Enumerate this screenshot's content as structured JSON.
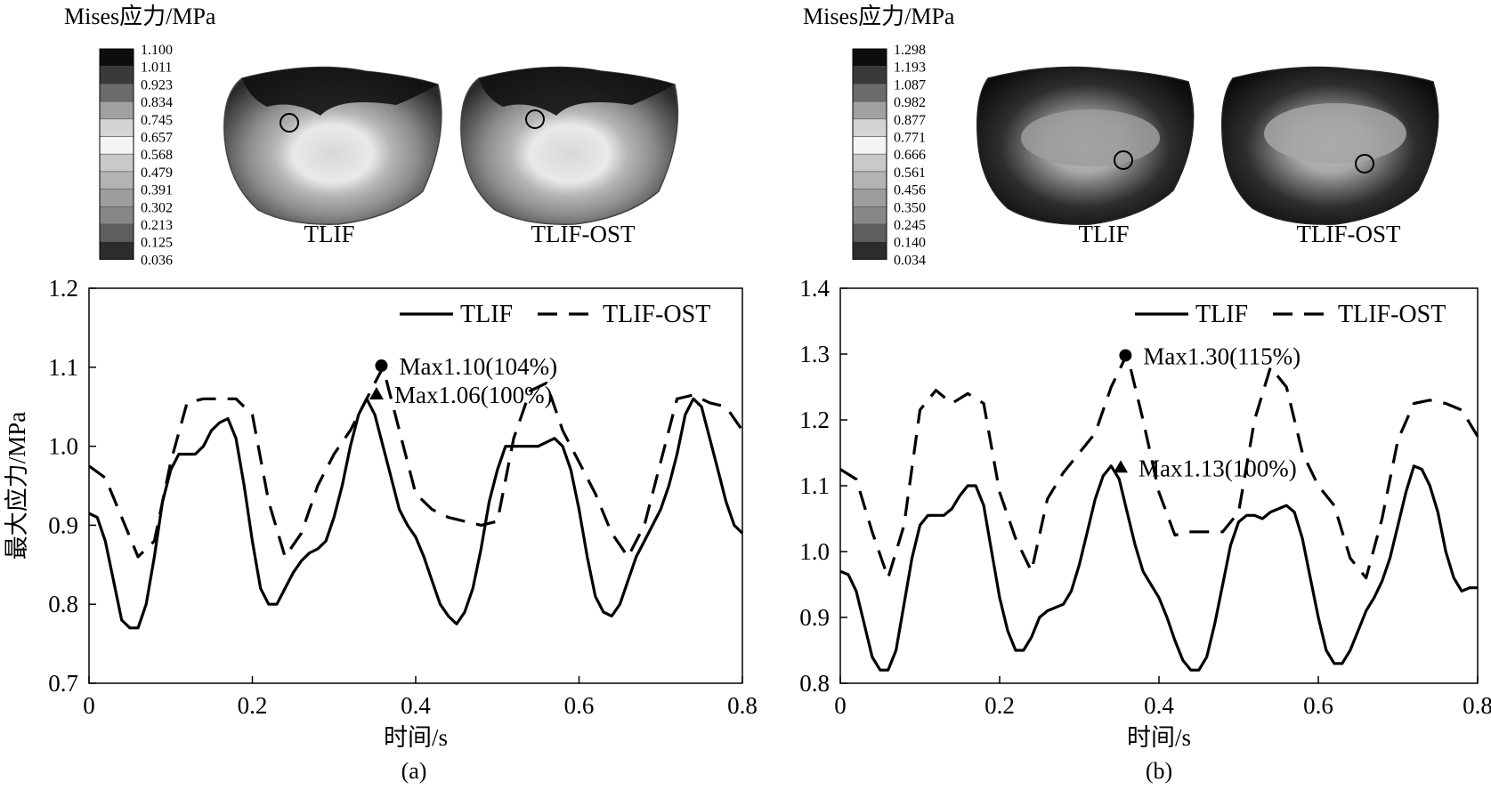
{
  "chart_data": [
    {
      "type": "line",
      "panel_label": "(a)",
      "colorbar": {
        "title": "Mises应力/MPa",
        "ticks": [
          "1.100",
          "1.011",
          "0.923",
          "0.834",
          "0.745",
          "0.657",
          "0.568",
          "0.479",
          "0.391",
          "0.302",
          "0.213",
          "0.125",
          "0.036"
        ]
      },
      "model_labels": [
        "TLIF",
        "TLIF-OST"
      ],
      "xlabel": "时间/s",
      "ylabel": "最大应力/MPa",
      "xlim": [
        0,
        0.8
      ],
      "ylim": [
        0.7,
        1.2
      ],
      "xticks": [
        "0",
        "0.2",
        "0.4",
        "0.6",
        "0.8"
      ],
      "yticks": [
        "0.7",
        "0.8",
        "0.9",
        "1.0",
        "1.1",
        "1.2"
      ],
      "legend_position": "top-right",
      "series": [
        {
          "name": "TLIF",
          "style": "solid",
          "x": [
            0,
            0.01,
            0.02,
            0.03,
            0.04,
            0.05,
            0.06,
            0.07,
            0.08,
            0.09,
            0.1,
            0.11,
            0.12,
            0.13,
            0.14,
            0.15,
            0.16,
            0.17,
            0.18,
            0.19,
            0.2,
            0.21,
            0.22,
            0.23,
            0.24,
            0.25,
            0.26,
            0.27,
            0.28,
            0.29,
            0.3,
            0.31,
            0.32,
            0.33,
            0.34,
            0.35,
            0.36,
            0.37,
            0.38,
            0.39,
            0.4,
            0.41,
            0.42,
            0.43,
            0.44,
            0.45,
            0.46,
            0.47,
            0.48,
            0.49,
            0.5,
            0.51,
            0.52,
            0.53,
            0.54,
            0.55,
            0.56,
            0.57,
            0.58,
            0.59,
            0.6,
            0.61,
            0.62,
            0.63,
            0.64,
            0.65,
            0.66,
            0.67,
            0.68,
            0.69,
            0.7,
            0.71,
            0.72,
            0.73,
            0.74,
            0.75,
            0.76,
            0.77,
            0.78,
            0.79,
            0.8
          ],
          "values": [
            0.915,
            0.91,
            0.88,
            0.83,
            0.78,
            0.77,
            0.77,
            0.8,
            0.86,
            0.93,
            0.97,
            0.99,
            0.99,
            0.99,
            1.0,
            1.02,
            1.03,
            1.035,
            1.01,
            0.95,
            0.88,
            0.82,
            0.8,
            0.8,
            0.82,
            0.84,
            0.855,
            0.865,
            0.87,
            0.88,
            0.91,
            0.95,
            1.0,
            1.04,
            1.06,
            1.04,
            1.0,
            0.96,
            0.92,
            0.9,
            0.885,
            0.86,
            0.83,
            0.8,
            0.785,
            0.775,
            0.79,
            0.82,
            0.87,
            0.93,
            0.97,
            1.0,
            1.0,
            1.0,
            1.0,
            1.0,
            1.005,
            1.01,
            1.0,
            0.97,
            0.92,
            0.86,
            0.81,
            0.79,
            0.785,
            0.8,
            0.83,
            0.86,
            0.88,
            0.9,
            0.92,
            0.95,
            0.99,
            1.04,
            1.06,
            1.05,
            1.01,
            0.97,
            0.93,
            0.9,
            0.89
          ]
        },
        {
          "name": "TLIF-OST",
          "style": "dashed",
          "x": [
            0,
            0.02,
            0.04,
            0.06,
            0.08,
            0.1,
            0.12,
            0.14,
            0.16,
            0.18,
            0.2,
            0.22,
            0.24,
            0.26,
            0.28,
            0.3,
            0.32,
            0.34,
            0.36,
            0.38,
            0.4,
            0.42,
            0.44,
            0.46,
            0.48,
            0.5,
            0.52,
            0.54,
            0.56,
            0.58,
            0.6,
            0.62,
            0.64,
            0.66,
            0.68,
            0.7,
            0.72,
            0.74,
            0.76,
            0.78,
            0.8
          ],
          "values": [
            0.975,
            0.96,
            0.91,
            0.86,
            0.88,
            0.98,
            1.055,
            1.06,
            1.06,
            1.06,
            1.04,
            0.93,
            0.86,
            0.89,
            0.95,
            0.99,
            1.02,
            1.06,
            1.1,
            1.02,
            0.94,
            0.92,
            0.91,
            0.905,
            0.9,
            0.905,
            1.01,
            1.07,
            1.08,
            1.02,
            0.98,
            0.94,
            0.89,
            0.86,
            0.9,
            0.98,
            1.06,
            1.065,
            1.055,
            1.05,
            1.02
          ]
        }
      ],
      "annotations": [
        {
          "marker": "circle",
          "x": 0.358,
          "y": 1.102,
          "label": "Max1.10(104%)"
        },
        {
          "marker": "triangle",
          "x": 0.352,
          "y": 1.066,
          "label": "Max1.06(100%)"
        }
      ]
    },
    {
      "type": "line",
      "panel_label": "(b)",
      "colorbar": {
        "title": "Mises应力/MPa",
        "ticks": [
          "1.298",
          "1.193",
          "1.087",
          "0.982",
          "0.877",
          "0.771",
          "0.666",
          "0.561",
          "0.456",
          "0.350",
          "0.245",
          "0.140",
          "0.034"
        ]
      },
      "model_labels": [
        "TLIF",
        "TLIF-OST"
      ],
      "xlabel": "时间/s",
      "ylabel": "",
      "xlim": [
        0,
        0.8
      ],
      "ylim": [
        0.8,
        1.4
      ],
      "xticks": [
        "0",
        "0.2",
        "0.4",
        "0.6",
        "0.8"
      ],
      "yticks": [
        "0.8",
        "0.9",
        "1.0",
        "1.1",
        "1.2",
        "1.3",
        "1.4"
      ],
      "legend_position": "top-right",
      "series": [
        {
          "name": "TLIF",
          "style": "solid",
          "x": [
            0,
            0.01,
            0.02,
            0.03,
            0.04,
            0.05,
            0.06,
            0.07,
            0.08,
            0.09,
            0.1,
            0.11,
            0.12,
            0.13,
            0.14,
            0.15,
            0.16,
            0.17,
            0.18,
            0.19,
            0.2,
            0.21,
            0.22,
            0.23,
            0.24,
            0.25,
            0.26,
            0.27,
            0.28,
            0.29,
            0.3,
            0.31,
            0.32,
            0.33,
            0.34,
            0.35,
            0.36,
            0.37,
            0.38,
            0.39,
            0.4,
            0.41,
            0.42,
            0.43,
            0.44,
            0.45,
            0.46,
            0.47,
            0.48,
            0.49,
            0.5,
            0.51,
            0.52,
            0.53,
            0.54,
            0.55,
            0.56,
            0.57,
            0.58,
            0.59,
            0.6,
            0.61,
            0.62,
            0.63,
            0.64,
            0.65,
            0.66,
            0.67,
            0.68,
            0.69,
            0.7,
            0.71,
            0.72,
            0.73,
            0.74,
            0.75,
            0.76,
            0.77,
            0.78,
            0.79,
            0.8
          ],
          "values": [
            0.97,
            0.965,
            0.94,
            0.89,
            0.84,
            0.82,
            0.82,
            0.85,
            0.92,
            0.99,
            1.04,
            1.055,
            1.055,
            1.055,
            1.065,
            1.085,
            1.1,
            1.1,
            1.07,
            1.0,
            0.93,
            0.88,
            0.85,
            0.85,
            0.87,
            0.9,
            0.91,
            0.915,
            0.92,
            0.94,
            0.98,
            1.03,
            1.08,
            1.115,
            1.13,
            1.11,
            1.06,
            1.01,
            0.97,
            0.95,
            0.93,
            0.9,
            0.865,
            0.835,
            0.82,
            0.82,
            0.84,
            0.89,
            0.95,
            1.01,
            1.045,
            1.055,
            1.055,
            1.05,
            1.06,
            1.065,
            1.07,
            1.06,
            1.02,
            0.96,
            0.9,
            0.85,
            0.83,
            0.83,
            0.85,
            0.88,
            0.91,
            0.93,
            0.955,
            0.99,
            1.04,
            1.09,
            1.13,
            1.125,
            1.1,
            1.06,
            1.0,
            0.96,
            0.94,
            0.945,
            0.945
          ]
        },
        {
          "name": "TLIF-OST",
          "style": "dashed",
          "x": [
            0,
            0.02,
            0.04,
            0.06,
            0.08,
            0.1,
            0.12,
            0.14,
            0.16,
            0.18,
            0.2,
            0.22,
            0.24,
            0.26,
            0.28,
            0.3,
            0.32,
            0.34,
            0.36,
            0.38,
            0.4,
            0.42,
            0.44,
            0.46,
            0.48,
            0.5,
            0.52,
            0.54,
            0.56,
            0.58,
            0.6,
            0.62,
            0.64,
            0.66,
            0.68,
            0.7,
            0.72,
            0.74,
            0.76,
            0.78,
            0.8
          ],
          "values": [
            1.125,
            1.11,
            1.03,
            0.96,
            1.04,
            1.215,
            1.245,
            1.225,
            1.24,
            1.225,
            1.09,
            1.02,
            0.97,
            1.08,
            1.12,
            1.15,
            1.18,
            1.25,
            1.3,
            1.2,
            1.09,
            1.025,
            1.03,
            1.03,
            1.03,
            1.06,
            1.2,
            1.28,
            1.25,
            1.15,
            1.1,
            1.07,
            0.99,
            0.96,
            1.05,
            1.17,
            1.225,
            1.23,
            1.225,
            1.215,
            1.175
          ]
        }
      ],
      "annotations": [
        {
          "marker": "circle",
          "x": 0.358,
          "y": 1.298,
          "label": "Max1.30(115%)"
        },
        {
          "marker": "triangle",
          "x": 0.352,
          "y": 1.128,
          "label": "Max1.13(100%)"
        }
      ]
    }
  ]
}
